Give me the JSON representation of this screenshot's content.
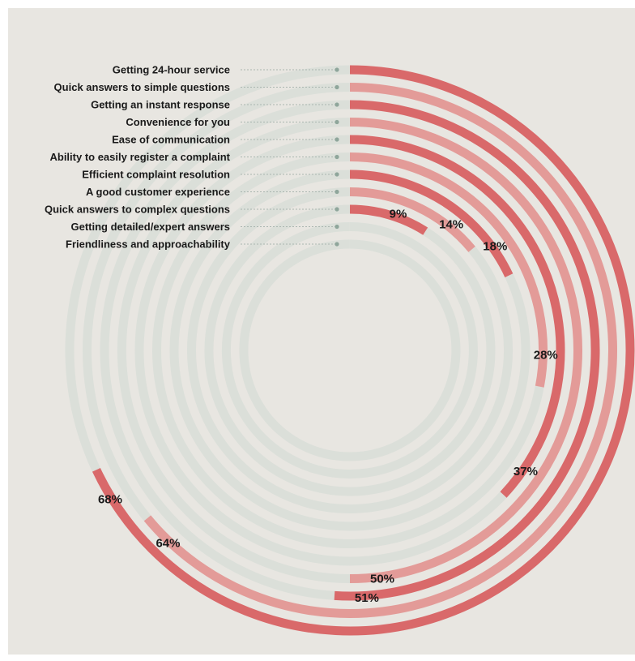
{
  "chart_data": {
    "type": "radial-bar",
    "unit": "%",
    "categories": [
      "Getting 24-hour service",
      "Quick answers to simple questions",
      "Getting an instant response",
      "Convenience for you",
      "Ease of communication",
      "Ability to easily register a complaint",
      "Efficient complaint resolution",
      "A good customer experience",
      "Quick answers to complex questions",
      "Getting detailed/expert answers",
      "Friendliness and approachability"
    ],
    "values": [
      68,
      64,
      51,
      50,
      37,
      28,
      18,
      14,
      9,
      null,
      null
    ],
    "value_labels": [
      "68%",
      "64%",
      "51%",
      "50%",
      "37%",
      "28%",
      "18%",
      "14%",
      "9%",
      "",
      ""
    ]
  },
  "colors": {
    "dark_bar": "#d9696a",
    "light_bar": "#e39b98",
    "ghost_track": "#cfd8d3",
    "leader": "#aab6b0",
    "dot": "#8fa69b",
    "panel": "#e8e6e1"
  }
}
